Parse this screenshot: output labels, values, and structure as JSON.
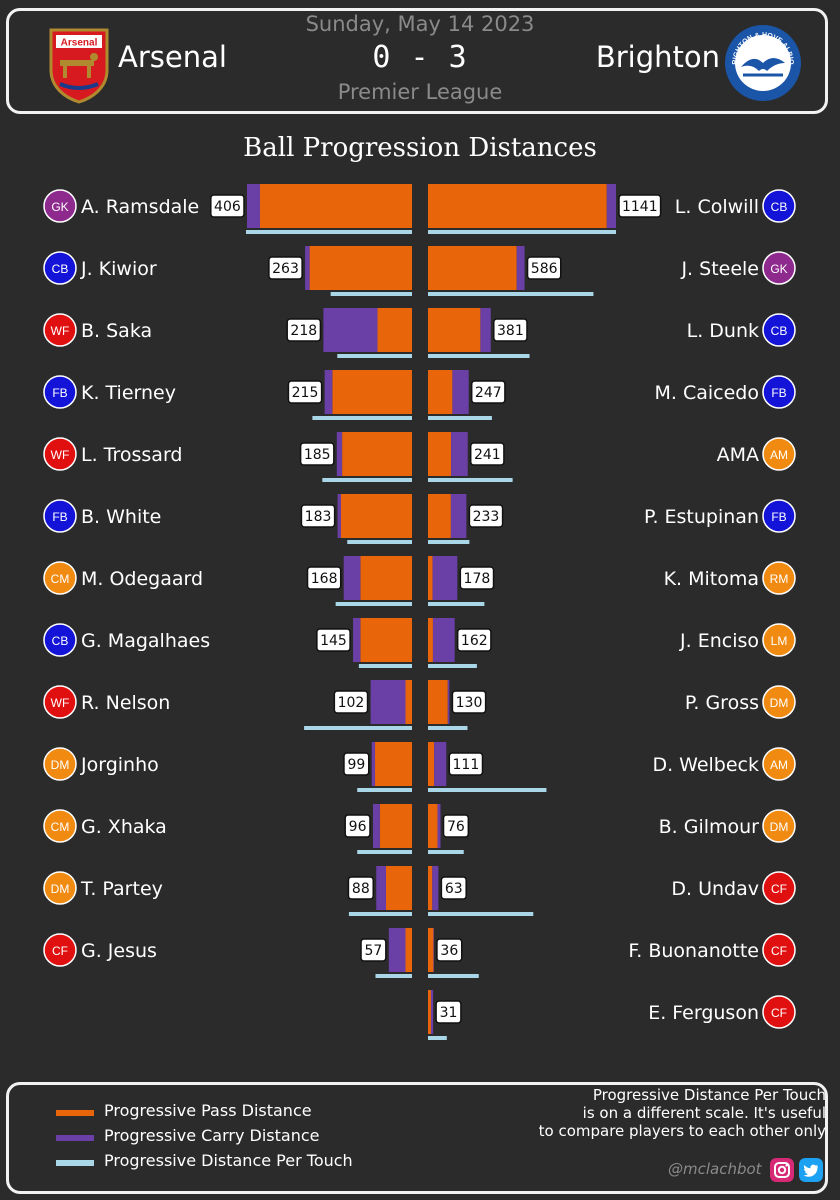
{
  "header": {
    "date": "Sunday, May 14 2023",
    "score": "0 - 3",
    "league": "Premier League",
    "home_team": "Arsenal",
    "away_team": "Brighton",
    "home_crest_text": "Arsenal",
    "away_crest_text": "BRIGHTON & HOVE ALBION"
  },
  "chart_data": {
    "type": "bar",
    "title": "Ball Progression Distances",
    "home": [
      {
        "name": "A. Ramsdale",
        "pos": "GK",
        "total": 406,
        "pass": 374,
        "carry": 32,
        "per_touch": 1.0
      },
      {
        "name": "J. Kiwior",
        "pos": "CB",
        "total": 263,
        "pass": 252,
        "carry": 11,
        "per_touch": 0.49
      },
      {
        "name": "B. Saka",
        "pos": "WF",
        "total": 218,
        "pass": 85,
        "carry": 133,
        "per_touch": 0.45
      },
      {
        "name": "K. Tierney",
        "pos": "FB",
        "total": 215,
        "pass": 196,
        "carry": 19,
        "per_touch": 0.6
      },
      {
        "name": "L. Trossard",
        "pos": "WF",
        "total": 185,
        "pass": 172,
        "carry": 13,
        "per_touch": 0.54
      },
      {
        "name": "B. White",
        "pos": "FB",
        "total": 183,
        "pass": 175,
        "carry": 8,
        "per_touch": 0.39
      },
      {
        "name": "M. Odegaard",
        "pos": "CM",
        "total": 168,
        "pass": 127,
        "carry": 41,
        "per_touch": 0.46
      },
      {
        "name": "G. Magalhaes",
        "pos": "CB",
        "total": 145,
        "pass": 127,
        "carry": 18,
        "per_touch": 0.32
      },
      {
        "name": "R. Nelson",
        "pos": "WF",
        "total": 102,
        "pass": 16,
        "carry": 86,
        "per_touch": 0.65
      },
      {
        "name": "Jorginho",
        "pos": "DM",
        "total": 99,
        "pass": 91,
        "carry": 8,
        "per_touch": 0.33
      },
      {
        "name": "G. Xhaka",
        "pos": "CM",
        "total": 96,
        "pass": 79,
        "carry": 17,
        "per_touch": 0.33
      },
      {
        "name": "T. Partey",
        "pos": "DM",
        "total": 88,
        "pass": 64,
        "carry": 24,
        "per_touch": 0.38
      },
      {
        "name": "G. Jesus",
        "pos": "CF",
        "total": 57,
        "pass": 16,
        "carry": 41,
        "per_touch": 0.22
      }
    ],
    "away": [
      {
        "name": "L. Colwill",
        "pos": "CB",
        "total": 1141,
        "pass": 1085,
        "carry": 56,
        "per_touch": 1.0
      },
      {
        "name": "J. Steele",
        "pos": "GK",
        "total": 586,
        "pass": 538,
        "carry": 48,
        "per_touch": 0.88
      },
      {
        "name": "L. Dunk",
        "pos": "CB",
        "total": 381,
        "pass": 318,
        "carry": 63,
        "per_touch": 0.54
      },
      {
        "name": "M. Caicedo",
        "pos": "FB",
        "total": 247,
        "pass": 148,
        "carry": 99,
        "per_touch": 0.34
      },
      {
        "name": "AMA",
        "pos": "AM",
        "total": 241,
        "pass": 140,
        "carry": 101,
        "per_touch": 0.45
      },
      {
        "name": "P. Estupinan",
        "pos": "FB",
        "total": 233,
        "pass": 139,
        "carry": 94,
        "per_touch": 0.22
      },
      {
        "name": "K. Mitoma",
        "pos": "RM",
        "total": 178,
        "pass": 28,
        "carry": 150,
        "per_touch": 0.3
      },
      {
        "name": "J. Enciso",
        "pos": "LM",
        "total": 162,
        "pass": 30,
        "carry": 132,
        "per_touch": 0.26
      },
      {
        "name": "P. Gross",
        "pos": "DM",
        "total": 130,
        "pass": 120,
        "carry": 10,
        "per_touch": 0.21
      },
      {
        "name": "D. Welbeck",
        "pos": "AM",
        "total": 111,
        "pass": 37,
        "carry": 74,
        "per_touch": 0.63
      },
      {
        "name": "B. Gilmour",
        "pos": "DM",
        "total": 76,
        "pass": 58,
        "carry": 18,
        "per_touch": 0.19
      },
      {
        "name": "D. Undav",
        "pos": "CF",
        "total": 63,
        "pass": 26,
        "carry": 37,
        "per_touch": 0.56
      },
      {
        "name": "F. Buonanotte",
        "pos": "CF",
        "total": 36,
        "pass": 33,
        "carry": 3,
        "per_touch": 0.27
      },
      {
        "name": "E. Ferguson",
        "pos": "CF",
        "total": 31,
        "pass": 18,
        "carry": 13,
        "per_touch": 0.1
      }
    ],
    "legend": [
      {
        "label": "Progressive Pass Distance",
        "color": "#e8650a"
      },
      {
        "label": "Progressive Carry Distance",
        "color": "#6a3fa6"
      },
      {
        "label": "Progressive Distance Per Touch",
        "color": "#a9d7e8"
      }
    ],
    "position_colors": {
      "GK": "#8e2a8e",
      "CB": "#1414d8",
      "FB": "#1414d8",
      "WF": "#e01010",
      "CF": "#e01010",
      "CM": "#f08a10",
      "DM": "#f08a10",
      "AM": "#f08a10",
      "RM": "#f08a10",
      "LM": "#f08a10"
    }
  },
  "footer": {
    "note_lines": [
      "Progressive Distance Per Touch",
      "is on a different scale.  It's useful",
      "to compare players to each other only"
    ],
    "handle": "@mclachbot",
    "instagram_icon": "instagram-icon",
    "twitter_icon": "twitter-icon"
  }
}
